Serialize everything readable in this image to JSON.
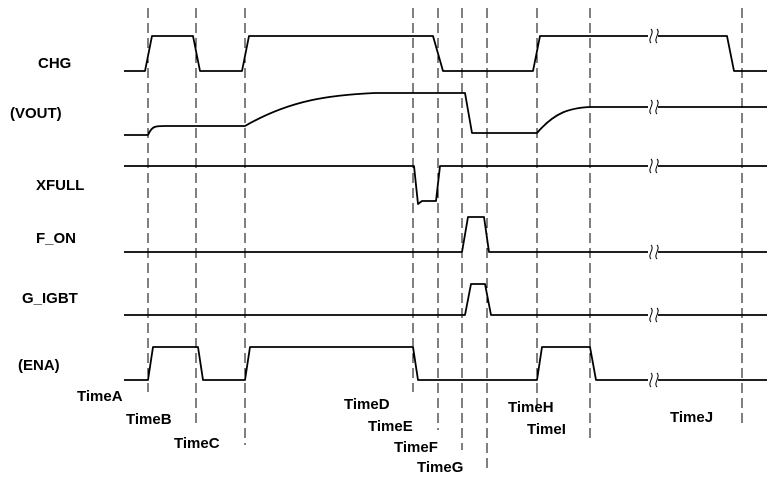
{
  "signals": [
    {
      "id": "chg",
      "label": "CHG"
    },
    {
      "id": "vout",
      "label": "(VOUT)"
    },
    {
      "id": "xfull",
      "label": "XFULL"
    },
    {
      "id": "f_on",
      "label": "F_ON"
    },
    {
      "id": "g_igbt",
      "label": "G_IGBT"
    },
    {
      "id": "ena",
      "label": "(ENA)"
    }
  ],
  "time_markers": [
    {
      "id": "a",
      "label": "TimeA"
    },
    {
      "id": "b",
      "label": "TimeB"
    },
    {
      "id": "c",
      "label": "TimeC"
    },
    {
      "id": "d",
      "label": "TimeD"
    },
    {
      "id": "e",
      "label": "TimeE"
    },
    {
      "id": "f",
      "label": "TimeF"
    },
    {
      "id": "g",
      "label": "TimeG"
    },
    {
      "id": "h",
      "label": "TimeH"
    },
    {
      "id": "i",
      "label": "TimeI"
    },
    {
      "id": "j",
      "label": "TimeJ"
    }
  ]
}
